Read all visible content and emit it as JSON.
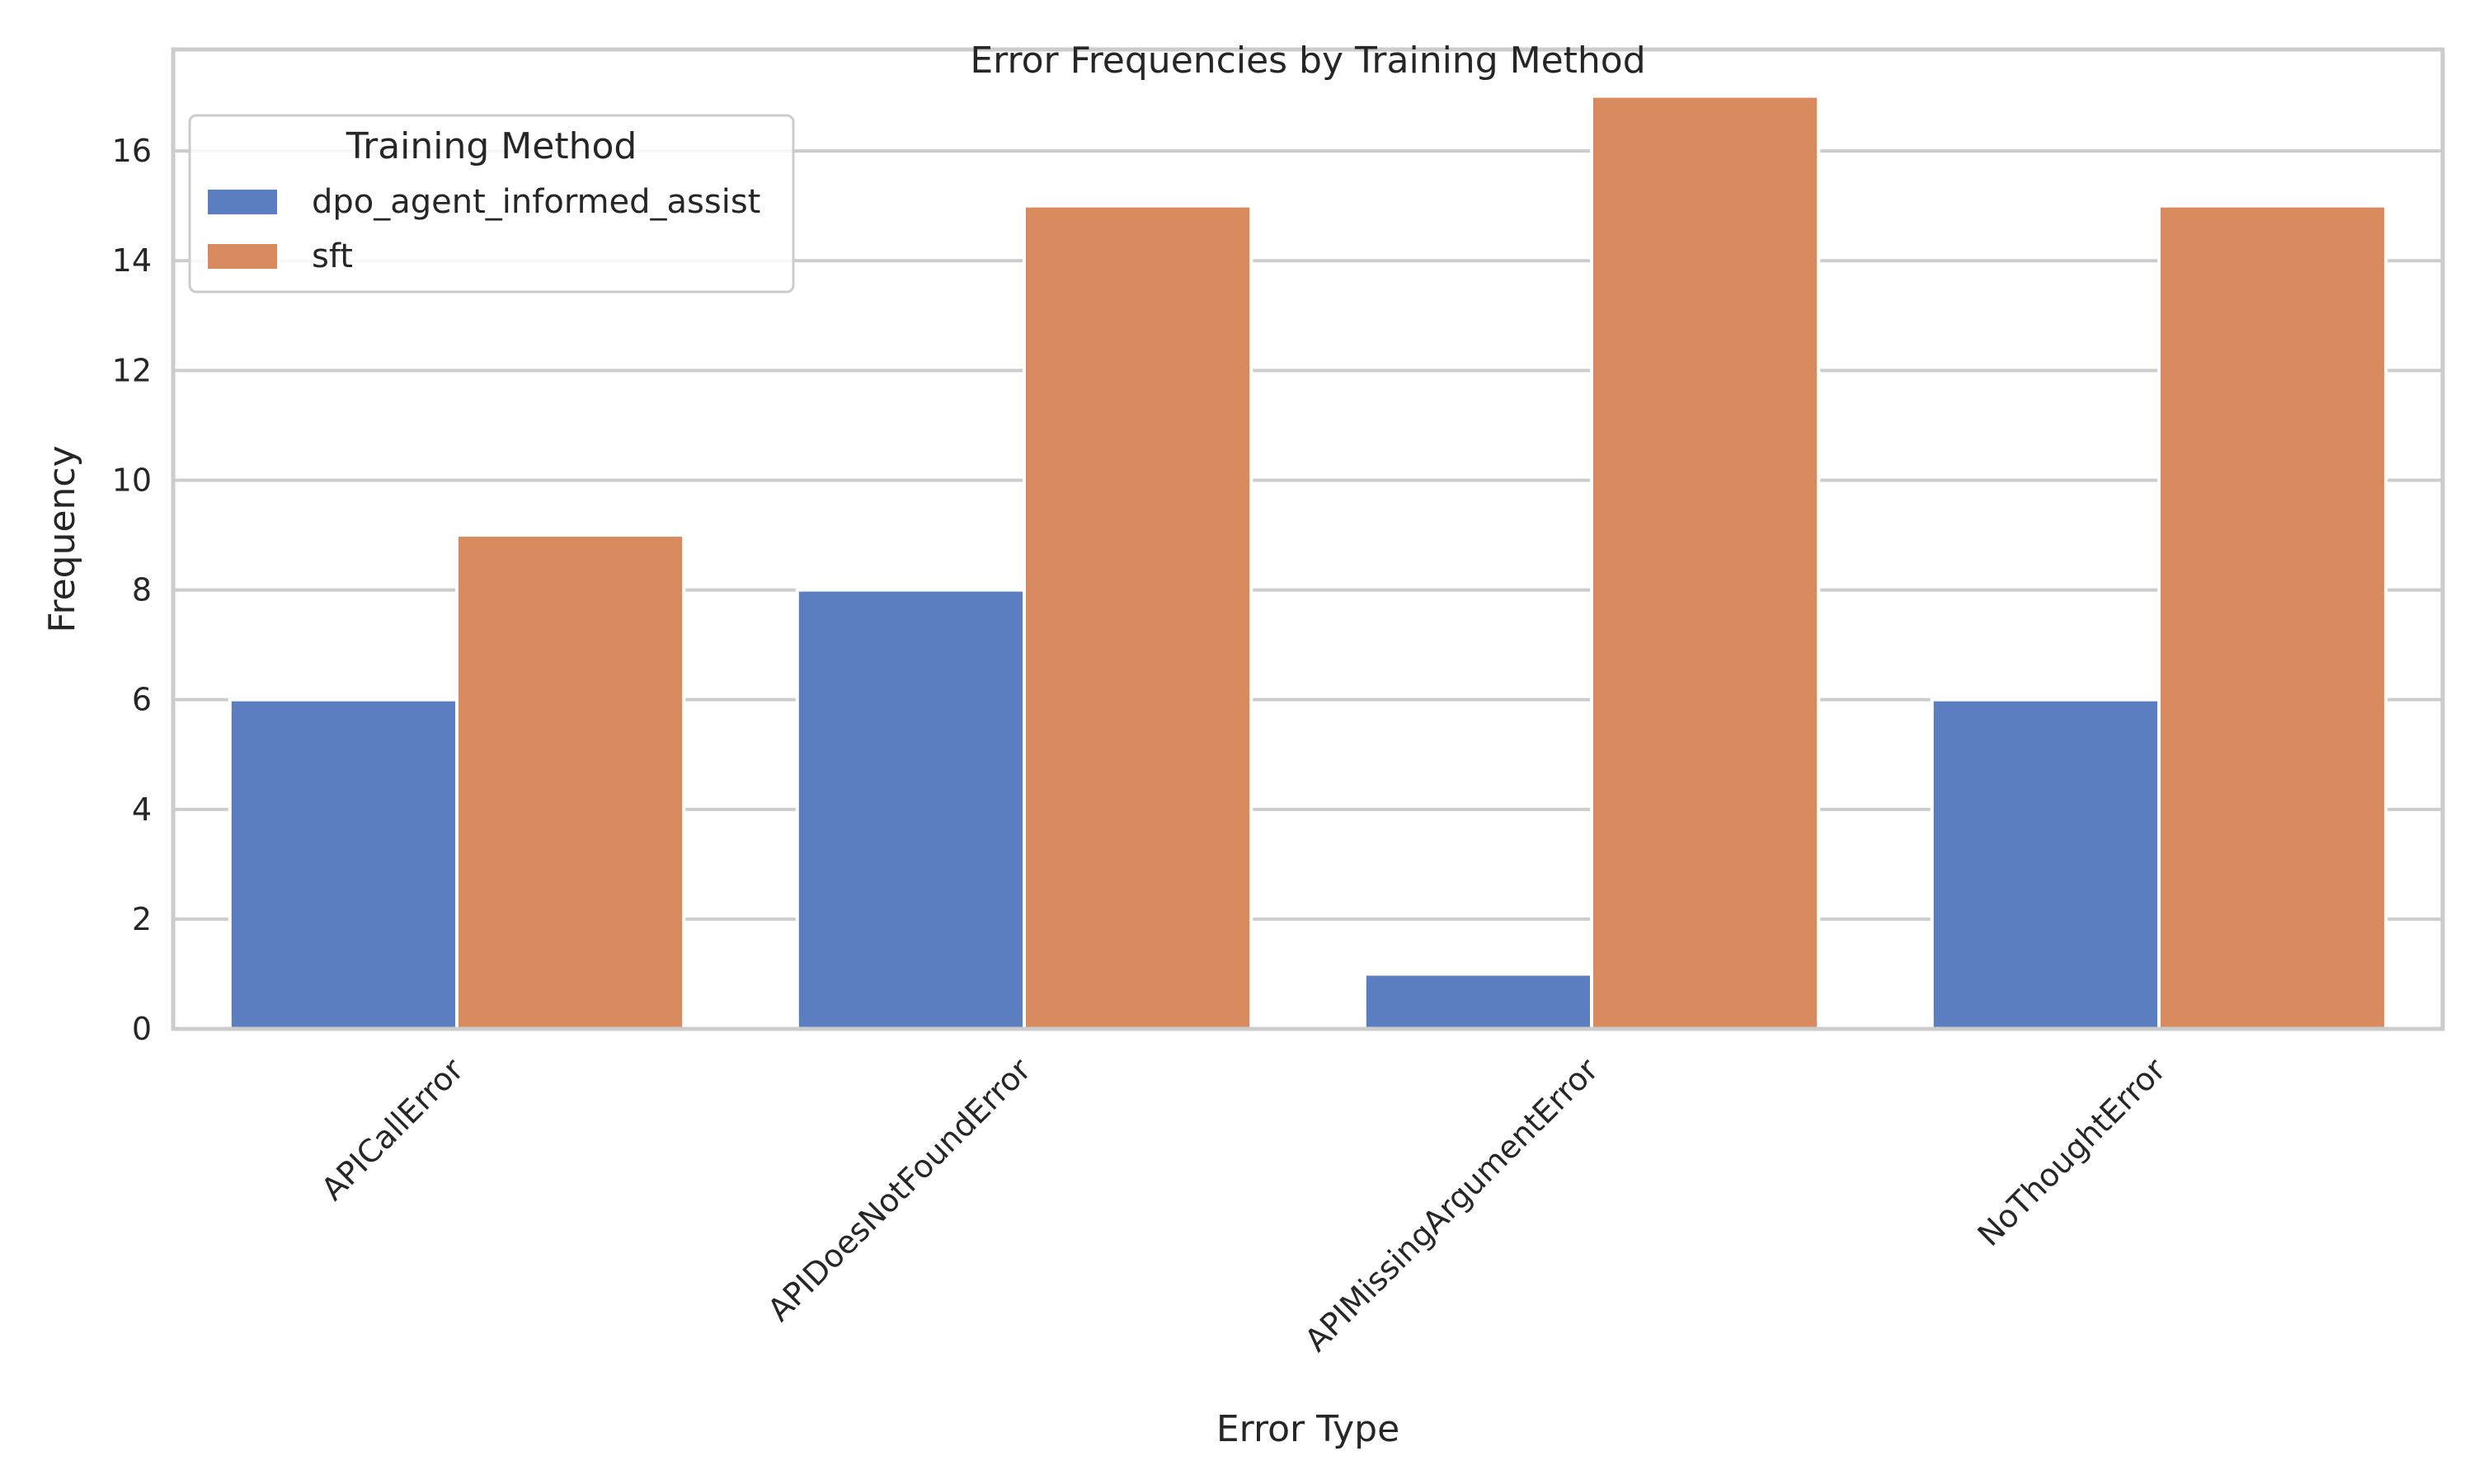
{
  "chart_data": {
    "type": "bar",
    "title": "Error Frequencies by Training Method",
    "xlabel": "Error Type",
    "ylabel": "Frequency",
    "categories": [
      "APICallError",
      "APIDoesNotFoundError",
      "APIMissingArgumentError",
      "NoThoughtError"
    ],
    "series": [
      {
        "name": "dpo_agent_informed_assist",
        "color": "#5b7ec1",
        "values": [
          6,
          8,
          1,
          6
        ]
      },
      {
        "name": "sft",
        "color": "#d98b5f",
        "values": [
          9,
          15,
          17,
          15
        ]
      }
    ],
    "ylim": [
      0,
      17.85
    ],
    "yticks": [
      "0",
      "2",
      "4",
      "6",
      "8",
      "10",
      "12",
      "14",
      "16"
    ],
    "grid": true,
    "legend": {
      "title": "Training Method",
      "placement": "top-left"
    }
  }
}
